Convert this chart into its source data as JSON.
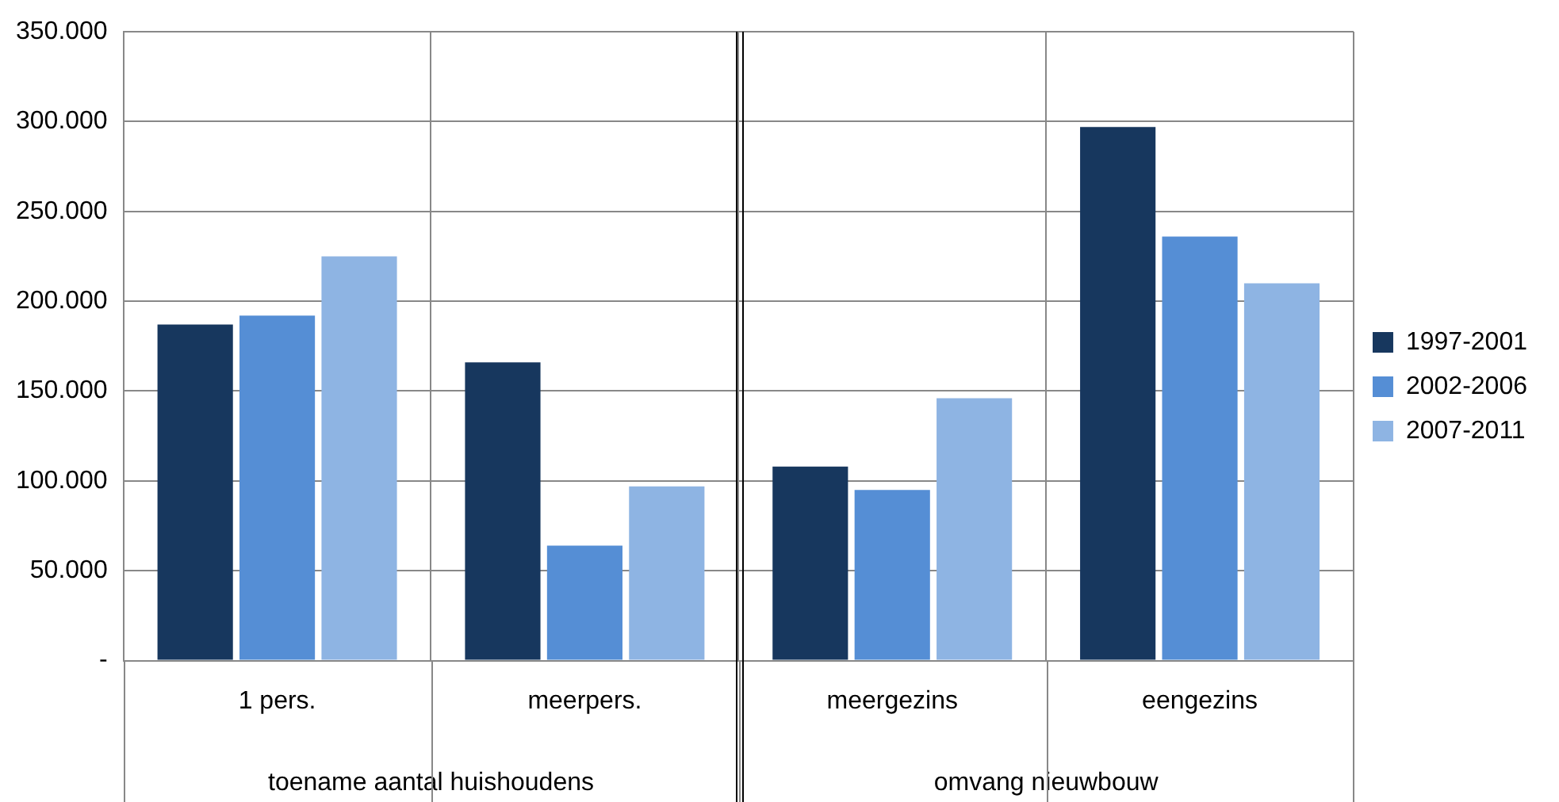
{
  "chart_data": {
    "type": "bar",
    "categories": [
      "1 pers.",
      "meerpers.",
      "meergezins",
      "eengezins"
    ],
    "series": [
      {
        "name": "1997-2001",
        "color": "#17375e",
        "values": [
          187000,
          166000,
          108000,
          297000
        ]
      },
      {
        "name": "2002-2006",
        "color": "#558ed5",
        "values": [
          192000,
          64000,
          95000,
          236000
        ]
      },
      {
        "name": "2007-2011",
        "color": "#8eb4e3",
        "values": [
          225000,
          97000,
          146000,
          210000
        ]
      }
    ],
    "ylim": [
      0,
      350000
    ],
    "yticks": [
      {
        "value": 0,
        "label": "-"
      },
      {
        "value": 50000,
        "label": "50.000"
      },
      {
        "value": 100000,
        "label": "100.000"
      },
      {
        "value": 150000,
        "label": "150.000"
      },
      {
        "value": 200000,
        "label": "200.000"
      },
      {
        "value": 250000,
        "label": "250.000"
      },
      {
        "value": 300000,
        "label": "300.000"
      },
      {
        "value": 350000,
        "label": "350.000"
      }
    ],
    "grid": true,
    "legend": "right",
    "annotations": [
      "toename aantal huishoudens",
      "omvang nieuwbouw"
    ]
  }
}
